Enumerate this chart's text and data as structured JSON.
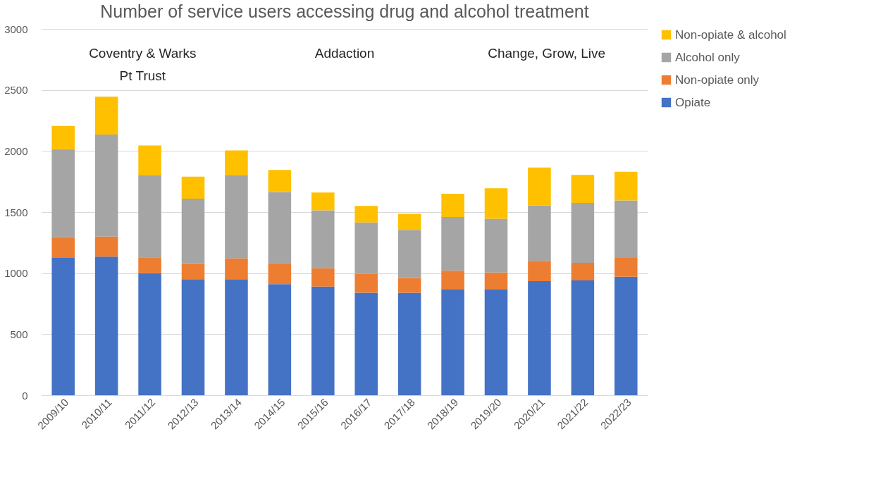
{
  "chart_data": {
    "type": "bar",
    "title": "Number of service users accessing drug and alcohol treatment",
    "stacked": true,
    "legend": "right",
    "grid": "y",
    "categories": [
      "2009/10",
      "2010/11",
      "2011/12",
      "2012/13",
      "2013/14",
      "2014/15",
      "2015/16",
      "2016/17",
      "2017/18",
      "2018/19",
      "2019/20",
      "2020/21",
      "2021/22",
      "2022/23"
    ],
    "series": [
      {
        "name": "Opiate",
        "color": "#4472c4",
        "values": [
          1125,
          1135,
          1000,
          950,
          950,
          910,
          890,
          840,
          840,
          870,
          870,
          935,
          940,
          970
        ]
      },
      {
        "name": "Non-opiate only",
        "color": "#ed7d31",
        "values": [
          170,
          165,
          130,
          125,
          170,
          170,
          150,
          155,
          120,
          150,
          135,
          165,
          145,
          155
        ]
      },
      {
        "name": "Alcohol only",
        "color": "#a5a5a5",
        "values": [
          720,
          835,
          670,
          535,
          680,
          585,
          475,
          420,
          395,
          440,
          440,
          455,
          490,
          470
        ]
      },
      {
        "name": "Non-opiate & alcohol",
        "color": "#ffc000",
        "values": [
          190,
          310,
          245,
          180,
          205,
          180,
          145,
          135,
          130,
          190,
          250,
          310,
          230,
          235
        ]
      }
    ],
    "ylim": [
      0,
      3000
    ],
    "yticks": [
      0,
      500,
      1000,
      1500,
      2000,
      2500,
      3000
    ],
    "annotations": [
      "Coventry & Warks\nPt Trust",
      "Addaction",
      "Change, Grow, Live"
    ]
  }
}
